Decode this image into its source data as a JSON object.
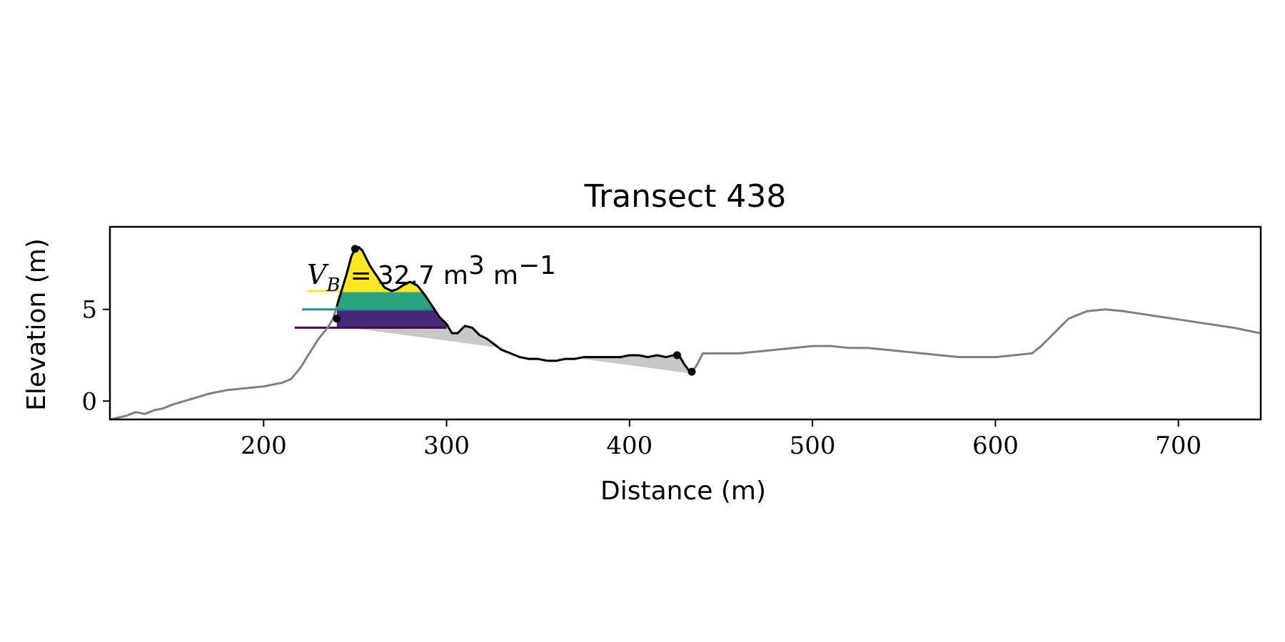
{
  "chart_data": {
    "type": "line",
    "title": "Transect 438",
    "xlabel": "Distance (m)",
    "ylabel": "Elevation (m)",
    "xlim": [
      116,
      745
    ],
    "ylim": [
      -1,
      9.5
    ],
    "xticks": [
      200,
      300,
      400,
      500,
      600,
      700
    ],
    "yticks": [
      0,
      5
    ],
    "grid": false,
    "annotation": {
      "var": "V",
      "sub": "B",
      "equals": "=",
      "value": "32.7",
      "unit": "m",
      "unit_exp": "3",
      "per": "m",
      "per_exp": "−1"
    },
    "profile": {
      "name": "profile",
      "color": "#808080",
      "x": [
        116,
        125,
        130,
        135,
        140,
        145,
        150,
        160,
        170,
        175,
        180,
        190,
        200,
        210,
        215,
        220,
        225,
        230,
        235,
        238,
        241,
        245,
        248,
        250,
        252,
        254,
        256,
        258,
        262,
        266,
        270,
        273,
        276,
        280,
        284,
        288,
        292,
        296,
        300,
        303,
        306,
        310,
        314,
        318,
        322,
        326,
        330,
        335,
        340,
        345,
        350,
        355,
        360,
        365,
        370,
        375,
        380,
        385,
        390,
        395,
        400,
        405,
        410,
        415,
        420,
        424,
        427,
        430,
        433,
        435,
        437,
        440,
        444,
        450,
        460,
        470,
        480,
        490,
        500,
        510,
        520,
        530,
        540,
        550,
        560,
        570,
        580,
        590,
        600,
        610,
        620,
        625,
        630,
        640,
        650,
        660,
        670,
        690,
        710,
        730,
        745
      ],
      "y": [
        -1,
        -0.8,
        -0.6,
        -0.7,
        -0.5,
        -0.4,
        -0.2,
        0.1,
        0.4,
        0.5,
        0.6,
        0.7,
        0.8,
        1.0,
        1.2,
        1.8,
        2.6,
        3.4,
        4.0,
        4.5,
        5.5,
        6.8,
        7.9,
        8.3,
        8.4,
        8.2,
        7.8,
        7.4,
        6.8,
        6.2,
        6.0,
        6.1,
        6.3,
        6.5,
        6.3,
        5.8,
        5.2,
        4.6,
        4.2,
        3.7,
        3.7,
        4.1,
        4.0,
        3.6,
        3.4,
        3.1,
        2.8,
        2.6,
        2.4,
        2.3,
        2.3,
        2.2,
        2.2,
        2.3,
        2.3,
        2.4,
        2.4,
        2.4,
        2.4,
        2.4,
        2.5,
        2.5,
        2.4,
        2.5,
        2.4,
        2.5,
        2.5,
        2.0,
        1.6,
        1.7,
        2.0,
        2.6,
        2.6,
        2.6,
        2.6,
        2.7,
        2.8,
        2.9,
        3.0,
        3.0,
        2.9,
        2.9,
        2.8,
        2.7,
        2.6,
        2.5,
        2.4,
        2.4,
        2.4,
        2.5,
        2.6,
        3.0,
        3.5,
        4.5,
        4.9,
        5.0,
        4.9,
        4.6,
        4.3,
        4.0,
        3.7
      ]
    },
    "dune_segment": {
      "name": "dune",
      "color": "#000000",
      "x_start": 240,
      "x_end": 434,
      "points_x": [
        240,
        250,
        426,
        434
      ],
      "points_y": [
        4.5,
        8.3,
        2.5,
        1.6
      ]
    },
    "baseline": {
      "color": "#c8c8c8",
      "x": [
        240,
        434
      ],
      "y": [
        4.1,
        1.5
      ]
    },
    "levels": [
      {
        "name": "level-1",
        "color": "#fde725",
        "y": 6.0,
        "x_start": 224
      },
      {
        "name": "level-2",
        "color": "#21918c",
        "y": 5.0,
        "x_start": 221
      },
      {
        "name": "level-3",
        "color": "#440154",
        "y": 4.0,
        "x_start": 217
      }
    ],
    "band_colors": [
      "#fde725",
      "#2aa381",
      "#482878"
    ]
  }
}
